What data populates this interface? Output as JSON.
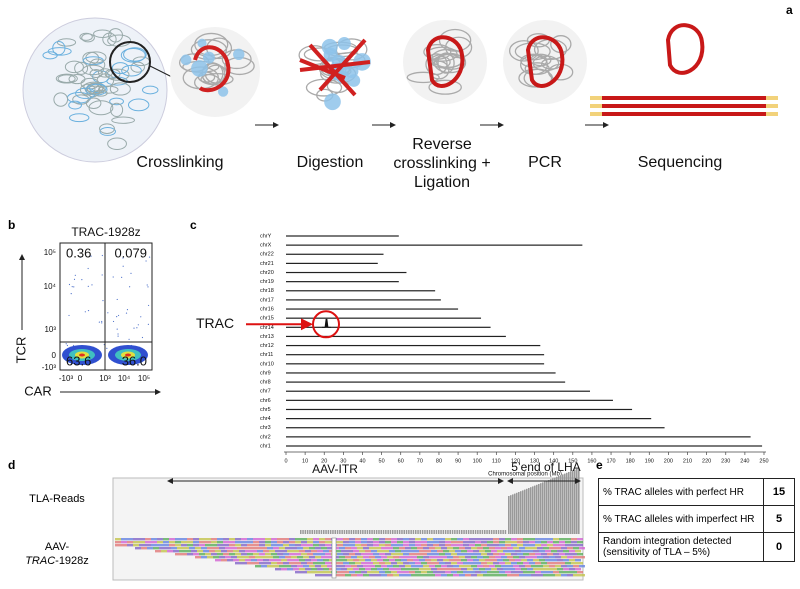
{
  "panel_a": {
    "label": "a",
    "steps": [
      "Crosslinking",
      "Digestion",
      "Reverse crosslinking + Ligation",
      "PCR",
      "Sequencing"
    ]
  },
  "panel_b": {
    "label": "b",
    "title": "TRAC-1928z",
    "x_label": "CAR",
    "y_label": "TCR",
    "quadrants": [
      "0.36",
      "0.079",
      "63.6",
      "36.0"
    ],
    "y_ticks": [
      "10⁵",
      "10⁴",
      "10³",
      "0",
      "-10³"
    ],
    "x_ticks": [
      "-10³",
      "0",
      "10³",
      "10⁴",
      "10⁵"
    ]
  },
  "chart_data": {
    "type": "bar",
    "label": "c",
    "orientation": "horizontal",
    "annotation": "TRAC",
    "categories": [
      "chrY",
      "chrX",
      "chr22",
      "chr21",
      "chr20",
      "chr19",
      "chr18",
      "chr17",
      "chr16",
      "chr15",
      "chr14",
      "chr13",
      "chr12",
      "chr11",
      "chr10",
      "chr9",
      "chr8",
      "chr7",
      "chr6",
      "chr5",
      "chr4",
      "chr3",
      "chr2",
      "chr1"
    ],
    "values": [
      59,
      155,
      51,
      48,
      63,
      59,
      78,
      81,
      90,
      102,
      107,
      115,
      133,
      135,
      135,
      141,
      146,
      159,
      171,
      181,
      191,
      198,
      243,
      249
    ],
    "color": "#222222",
    "x_label": "Chromosomal position (Mb)",
    "xlim": [
      0,
      250
    ],
    "xticks": [
      0,
      10,
      20,
      30,
      40,
      50,
      60,
      70,
      80,
      90,
      100,
      110,
      120,
      130,
      140,
      150,
      160,
      170,
      180,
      190,
      200,
      210,
      220,
      230,
      240,
      250
    ]
  },
  "panel_d": {
    "label": "d",
    "arrow_left": "AAV-ITR",
    "arrow_right": "5’end of LHA",
    "track_1": "TLA-Reads",
    "track_2": {
      "prefix": "AAV-",
      "gene": "TRAC",
      "suffix": "-1928z"
    }
  },
  "panel_e": {
    "label": "e",
    "rows": [
      [
        "% TRAC alleles with perfect HR",
        "15"
      ],
      [
        "% TRAC alleles with imperfect HR",
        "5"
      ],
      [
        "Random integration detected (sensitivity of TLA – 5%)",
        "0"
      ]
    ]
  }
}
